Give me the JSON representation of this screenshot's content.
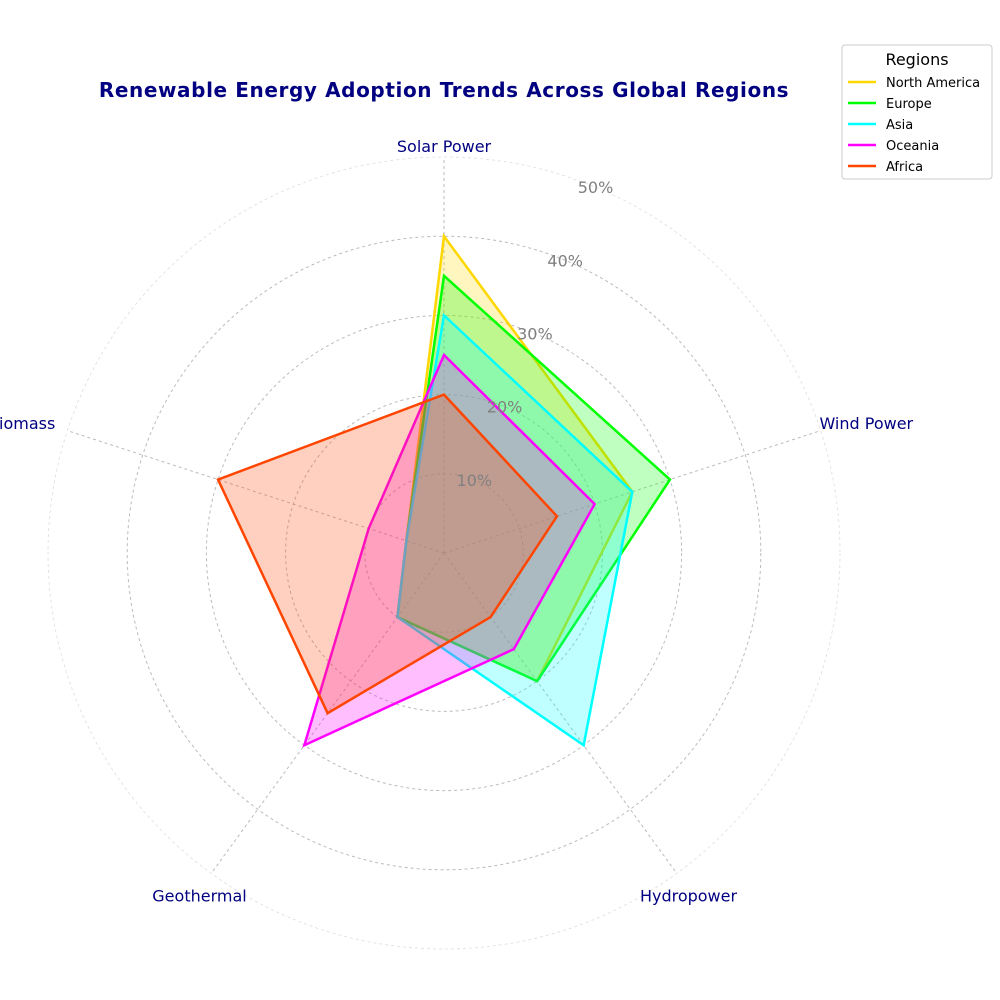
{
  "chart_data": {
    "type": "radar",
    "title": "Renewable Energy Adoption Trends Across Global Regions",
    "axes": [
      "Solar Power",
      "Wind Power",
      "Hydropower",
      "Geothermal",
      "Biomass"
    ],
    "r_ticks": [
      10,
      20,
      30,
      40,
      50
    ],
    "r_tick_labels": [
      "10%",
      "20%",
      "30%",
      "40%",
      "50%"
    ],
    "rlim": [
      0,
      50
    ],
    "grid": true,
    "legend": {
      "title": "Regions",
      "placement": "top-right"
    },
    "series": [
      {
        "name": "North America",
        "color": "#FFD700",
        "values": [
          40,
          25,
          20,
          10,
          5
        ]
      },
      {
        "name": "Europe",
        "color": "#00FF00",
        "values": [
          35,
          30,
          20,
          10,
          5
        ]
      },
      {
        "name": "Asia",
        "color": "#00FFFF",
        "values": [
          30,
          25,
          30,
          10,
          5
        ]
      },
      {
        "name": "Oceania",
        "color": "#FF00FF",
        "values": [
          25,
          20,
          15,
          30,
          10
        ]
      },
      {
        "name": "Africa",
        "color": "#FF4500",
        "values": [
          20,
          15,
          10,
          25,
          30
        ]
      }
    ],
    "colors": {
      "title": "#000080",
      "axis_label": "#000080",
      "tick_label": "#808080",
      "grid": "#bbbbbb"
    }
  }
}
